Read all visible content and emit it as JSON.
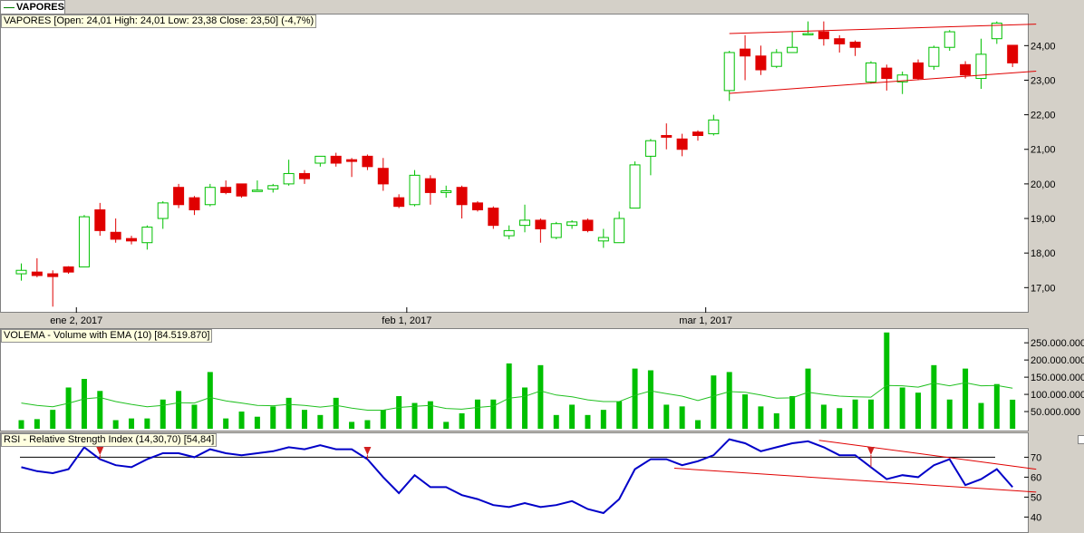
{
  "tab": {
    "label": "VAPORES"
  },
  "price_panel": {
    "title": "VAPORES [Open: 24,01  High: 24,01  Low: 23,38  Close: 23,50] (-4,7%)"
  },
  "volume_panel": {
    "title": "VOLEMA - Volume with EMA (10) [84.519.870]"
  },
  "rsi_panel": {
    "title": "RSI - Relative Strength Index (14,30,70) [54,84]"
  },
  "colors": {
    "up": "#00c000",
    "down": "#e00000",
    "ema": "#20c020",
    "rsi": "#0000c8",
    "trend": "#e00000",
    "marker": "#d02020"
  },
  "chart_data": [
    {
      "type": "candlestick",
      "title": "VAPORES",
      "ylim": [
        16.3,
        24.9
      ],
      "yticks": [
        17,
        18,
        19,
        20,
        21,
        22,
        23,
        24
      ],
      "ytick_labels": [
        "17,00",
        "18,00",
        "19,00",
        "20,00",
        "21,00",
        "22,00",
        "23,00",
        "24,00"
      ],
      "xtick_labels": [
        {
          "label": "ene 2, 2017",
          "index": 3.5
        },
        {
          "label": "feb 1, 2017",
          "index": 24.5
        },
        {
          "label": "mar 1, 2017",
          "index": 43.5
        }
      ],
      "candles": [
        {
          "o": 17.4,
          "h": 17.7,
          "l": 17.2,
          "c": 17.5
        },
        {
          "o": 17.45,
          "h": 17.85,
          "l": 17.3,
          "c": 17.35
        },
        {
          "o": 17.4,
          "h": 17.5,
          "l": 16.45,
          "c": 17.32
        },
        {
          "o": 17.6,
          "h": 17.62,
          "l": 17.4,
          "c": 17.45
        },
        {
          "o": 17.6,
          "h": 19.1,
          "l": 17.6,
          "c": 19.05
        },
        {
          "o": 19.25,
          "h": 19.45,
          "l": 18.5,
          "c": 18.65
        },
        {
          "o": 18.6,
          "h": 19.0,
          "l": 18.3,
          "c": 18.4
        },
        {
          "o": 18.42,
          "h": 18.5,
          "l": 18.25,
          "c": 18.35
        },
        {
          "o": 18.3,
          "h": 18.8,
          "l": 18.1,
          "c": 18.75
        },
        {
          "o": 19.0,
          "h": 19.5,
          "l": 18.7,
          "c": 19.45
        },
        {
          "o": 19.9,
          "h": 20.0,
          "l": 19.3,
          "c": 19.4
        },
        {
          "o": 19.6,
          "h": 19.65,
          "l": 19.1,
          "c": 19.25
        },
        {
          "o": 19.4,
          "h": 20.0,
          "l": 19.35,
          "c": 19.9
        },
        {
          "o": 19.9,
          "h": 20.1,
          "l": 19.7,
          "c": 19.75
        },
        {
          "o": 20.0,
          "h": 20.0,
          "l": 19.6,
          "c": 19.65
        },
        {
          "o": 19.8,
          "h": 20.1,
          "l": 19.78,
          "c": 19.82
        },
        {
          "o": 19.85,
          "h": 20.0,
          "l": 19.75,
          "c": 19.95
        },
        {
          "o": 20.0,
          "h": 20.7,
          "l": 19.95,
          "c": 20.3
        },
        {
          "o": 20.3,
          "h": 20.4,
          "l": 20.0,
          "c": 20.15
        },
        {
          "o": 20.6,
          "h": 20.8,
          "l": 20.5,
          "c": 20.8
        },
        {
          "o": 20.8,
          "h": 20.9,
          "l": 20.5,
          "c": 20.6
        },
        {
          "o": 20.7,
          "h": 20.75,
          "l": 20.2,
          "c": 20.65
        },
        {
          "o": 20.8,
          "h": 20.85,
          "l": 20.4,
          "c": 20.5
        },
        {
          "o": 20.45,
          "h": 20.75,
          "l": 19.8,
          "c": 20.0
        },
        {
          "o": 19.6,
          "h": 19.7,
          "l": 19.3,
          "c": 19.35
        },
        {
          "o": 19.4,
          "h": 20.4,
          "l": 19.35,
          "c": 20.25
        },
        {
          "o": 20.15,
          "h": 20.25,
          "l": 19.4,
          "c": 19.75
        },
        {
          "o": 19.75,
          "h": 19.95,
          "l": 19.6,
          "c": 19.8
        },
        {
          "o": 19.9,
          "h": 19.95,
          "l": 19.0,
          "c": 19.4
        },
        {
          "o": 19.45,
          "h": 19.5,
          "l": 19.2,
          "c": 19.25
        },
        {
          "o": 19.3,
          "h": 19.35,
          "l": 18.7,
          "c": 18.8
        },
        {
          "o": 18.5,
          "h": 18.8,
          "l": 18.4,
          "c": 18.65
        },
        {
          "o": 18.8,
          "h": 19.4,
          "l": 18.6,
          "c": 18.95
        },
        {
          "o": 18.95,
          "h": 19.0,
          "l": 18.3,
          "c": 18.7
        },
        {
          "o": 18.45,
          "h": 18.9,
          "l": 18.4,
          "c": 18.85
        },
        {
          "o": 18.8,
          "h": 18.95,
          "l": 18.7,
          "c": 18.9
        },
        {
          "o": 18.95,
          "h": 19.0,
          "l": 18.6,
          "c": 18.65
        },
        {
          "o": 18.35,
          "h": 18.7,
          "l": 18.15,
          "c": 18.45
        },
        {
          "o": 18.3,
          "h": 19.2,
          "l": 18.3,
          "c": 19.0
        },
        {
          "o": 19.3,
          "h": 20.65,
          "l": 19.3,
          "c": 20.55
        },
        {
          "o": 20.8,
          "h": 21.3,
          "l": 20.25,
          "c": 21.25
        },
        {
          "o": 21.4,
          "h": 21.75,
          "l": 21.0,
          "c": 21.35
        },
        {
          "o": 21.3,
          "h": 21.45,
          "l": 20.8,
          "c": 21.0
        },
        {
          "o": 21.5,
          "h": 21.55,
          "l": 21.25,
          "c": 21.4
        },
        {
          "o": 21.45,
          "h": 22.0,
          "l": 21.4,
          "c": 21.85
        },
        {
          "o": 22.7,
          "h": 23.85,
          "l": 22.4,
          "c": 23.8
        },
        {
          "o": 23.9,
          "h": 24.3,
          "l": 23.0,
          "c": 23.7
        },
        {
          "o": 23.7,
          "h": 24.0,
          "l": 23.15,
          "c": 23.3
        },
        {
          "o": 23.4,
          "h": 23.9,
          "l": 23.35,
          "c": 23.8
        },
        {
          "o": 23.8,
          "h": 24.4,
          "l": 23.8,
          "c": 23.95
        },
        {
          "o": 24.35,
          "h": 24.7,
          "l": 24.3,
          "c": 24.35
        },
        {
          "o": 24.4,
          "h": 24.7,
          "l": 24.0,
          "c": 24.2
        },
        {
          "o": 24.2,
          "h": 24.3,
          "l": 23.8,
          "c": 24.05
        },
        {
          "o": 24.1,
          "h": 24.15,
          "l": 23.7,
          "c": 23.95
        },
        {
          "o": 22.95,
          "h": 23.55,
          "l": 22.9,
          "c": 23.5
        },
        {
          "o": 23.35,
          "h": 23.45,
          "l": 22.7,
          "c": 23.05
        },
        {
          "o": 22.95,
          "h": 23.25,
          "l": 22.6,
          "c": 23.15
        },
        {
          "o": 23.5,
          "h": 23.6,
          "l": 23.0,
          "c": 23.05
        },
        {
          "o": 23.4,
          "h": 24.0,
          "l": 23.3,
          "c": 23.95
        },
        {
          "o": 23.95,
          "h": 24.45,
          "l": 23.85,
          "c": 24.4
        },
        {
          "o": 23.45,
          "h": 23.55,
          "l": 23.05,
          "c": 23.15
        },
        {
          "o": 23.05,
          "h": 24.2,
          "l": 22.75,
          "c": 23.75
        },
        {
          "o": 24.2,
          "h": 24.7,
          "l": 24.05,
          "c": 24.65
        },
        {
          "o": 24.01,
          "h": 24.01,
          "l": 23.38,
          "c": 23.5
        }
      ],
      "trendlines": [
        {
          "from": [
            45,
            24.35
          ],
          "to": [
            64.5,
            24.62
          ]
        },
        {
          "from": [
            45,
            22.62
          ],
          "to": [
            64.5,
            23.26
          ]
        }
      ]
    },
    {
      "type": "bar",
      "title": "VOLEMA - Volume with EMA (10)",
      "ylim": [
        0,
        290000000
      ],
      "yticks": [
        50000000,
        100000000,
        150000000,
        200000000,
        250000000
      ],
      "ytick_labels": [
        "50.000.000",
        "100.000.000",
        "150.000.000",
        "200.000.000",
        "250.000.000"
      ],
      "values": [
        25000000,
        28000000,
        55000000,
        120000000,
        145000000,
        110000000,
        25000000,
        30000000,
        30000000,
        85000000,
        110000000,
        70000000,
        165000000,
        30000000,
        50000000,
        35000000,
        65000000,
        90000000,
        55000000,
        40000000,
        90000000,
        20000000,
        25000000,
        55000000,
        95000000,
        75000000,
        80000000,
        20000000,
        45000000,
        85000000,
        85000000,
        190000000,
        120000000,
        185000000,
        40000000,
        70000000,
        40000000,
        55000000,
        80000000,
        175000000,
        170000000,
        70000000,
        65000000,
        25000000,
        155000000,
        165000000,
        100000000,
        65000000,
        45000000,
        95000000,
        175000000,
        70000000,
        60000000,
        85000000,
        85000000,
        280000000,
        120000000,
        105000000,
        185000000,
        85000000,
        175000000,
        75000000,
        130000000,
        84519870
      ],
      "ema": [
        75000000,
        68000000,
        64000000,
        74000000,
        87000000,
        91000000,
        79000000,
        71000000,
        64000000,
        68000000,
        76000000,
        75000000,
        91000000,
        81000000,
        75000000,
        68000000,
        67000000,
        71000000,
        68000000,
        63000000,
        68000000,
        60000000,
        54000000,
        54000000,
        62000000,
        65000000,
        68000000,
        59000000,
        57000000,
        62000000,
        66000000,
        89000000,
        94000000,
        110000000,
        98000000,
        93000000,
        84000000,
        79000000,
        79000000,
        97000000,
        110000000,
        102000000,
        95000000,
        82000000,
        95000000,
        108000000,
        106000000,
        98000000,
        89000000,
        90000000,
        106000000,
        100000000,
        95000000,
        93000000,
        92000000,
        126000000,
        125000000,
        121000000,
        133000000,
        125000000,
        134000000,
        125000000,
        126000000,
        118000000
      ]
    },
    {
      "type": "line",
      "title": "RSI - Relative Strength Index (14,30,70)",
      "ylim": [
        32,
        82
      ],
      "yticks": [
        40,
        50,
        60,
        70
      ],
      "ytick_labels": [
        "40",
        "50",
        "60",
        "70"
      ],
      "reference_level": 70,
      "values": [
        65,
        63,
        62,
        64,
        75,
        69,
        66,
        65,
        69,
        72,
        72,
        70,
        74,
        72,
        71,
        72,
        73,
        75,
        74,
        76,
        74,
        74,
        69,
        60,
        52,
        61,
        55,
        55,
        51,
        49,
        46,
        45,
        47,
        45,
        46,
        48,
        44,
        42,
        49,
        64,
        69,
        69,
        66,
        68,
        71,
        79,
        77,
        73,
        75,
        77,
        78,
        75,
        71,
        71,
        65,
        59,
        61,
        60,
        66,
        69,
        56,
        59,
        64,
        55
      ],
      "markers": [
        5,
        22,
        54
      ],
      "trendlines": [
        {
          "from": [
            50.7,
            78.5
          ],
          "to": [
            64.5,
            64.0
          ]
        },
        {
          "from": [
            41.5,
            64.5
          ],
          "to": [
            64.5,
            52.5
          ]
        }
      ]
    }
  ]
}
